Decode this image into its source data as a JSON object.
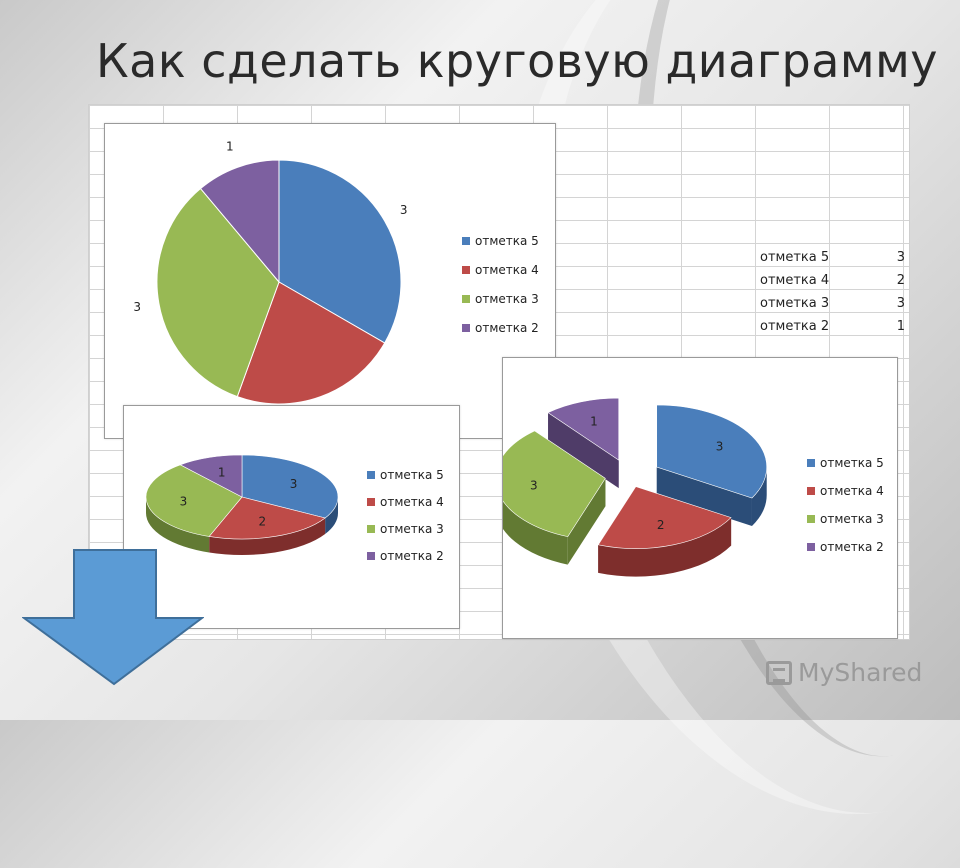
{
  "slide": {
    "title": "Как сделать круговую диаграмму",
    "logo_text": "MyShared"
  },
  "spreadsheet": {
    "rows": [
      {
        "label": "отметка 5",
        "value": "3"
      },
      {
        "label": "отметка 4",
        "value": "2"
      },
      {
        "label": "отметка 3",
        "value": "3"
      },
      {
        "label": "отметка 2",
        "value": "1"
      }
    ]
  },
  "colors": {
    "series": [
      "#4a7ebb",
      "#be4b48",
      "#98b954",
      "#7d60a0"
    ],
    "series_dark": [
      "#2b4d78",
      "#7e2e2c",
      "#627a33",
      "#4f3c68"
    ],
    "arrow": "#5b9bd5"
  },
  "chart_data": [
    {
      "type": "pie",
      "style": "2d",
      "categories": [
        "отметка 5",
        "отметка 4",
        "отметка 3",
        "отметка 2"
      ],
      "values": [
        3,
        2,
        3,
        1
      ],
      "data_labels": [
        "3",
        "",
        "3",
        "1"
      ],
      "legend": "right"
    },
    {
      "type": "pie",
      "style": "3d",
      "categories": [
        "отметка 5",
        "отметка 4",
        "отметка 3",
        "отметка 2"
      ],
      "values": [
        3,
        2,
        3,
        1
      ],
      "data_labels": [
        "3",
        "2",
        "3",
        "1"
      ],
      "legend": "right"
    },
    {
      "type": "pie",
      "style": "3d-exploded",
      "categories": [
        "отметка 5",
        "отметка 4",
        "отметка 3",
        "отметка 2"
      ],
      "values": [
        3,
        2,
        3,
        1
      ],
      "data_labels": [
        "3",
        "2",
        "3",
        "1"
      ],
      "legend": "right"
    }
  ]
}
